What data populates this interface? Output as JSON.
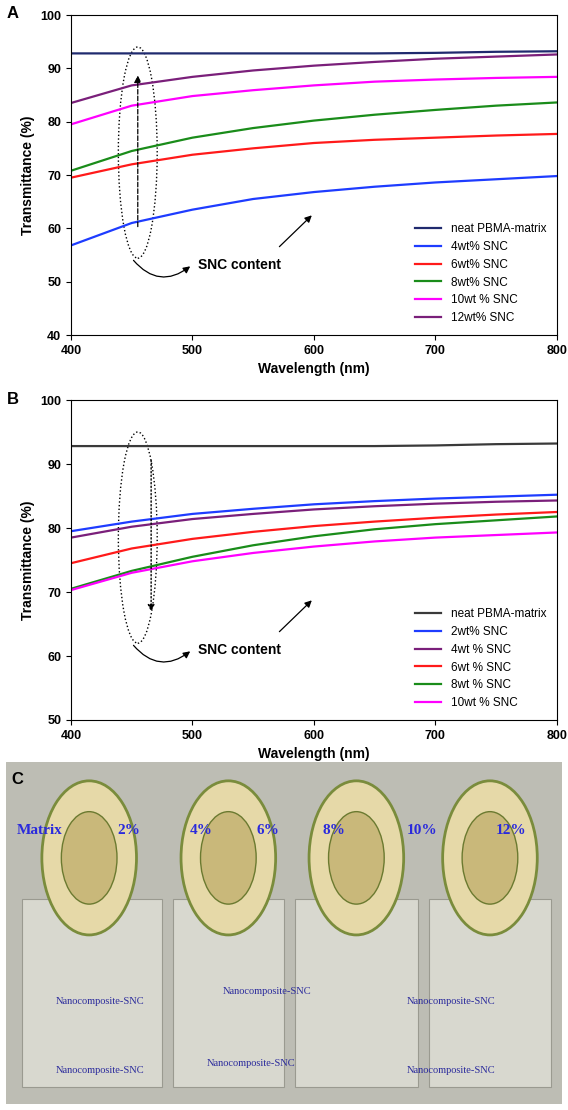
{
  "chart_data": [
    {
      "type": "line",
      "title": "A",
      "x_label": "Wavelength (nm)",
      "y_label": "Transmittance (%)",
      "annotation": "SNC content",
      "x": [
        400,
        450,
        500,
        550,
        600,
        650,
        700,
        750,
        800
      ],
      "series": [
        {
          "name": "neat PBMA-matrix",
          "color": "#1f2a6e",
          "values": [
            92.8,
            92.8,
            92.8,
            92.8,
            92.8,
            92.8,
            92.9,
            93.1,
            93.2
          ]
        },
        {
          "name": "4wt% SNC",
          "color": "#1e3cff",
          "values": [
            56.8,
            61.0,
            63.5,
            65.5,
            66.8,
            67.8,
            68.6,
            69.2,
            69.8
          ]
        },
        {
          "name": "6wt% SNC",
          "color": "#ff1a1a",
          "values": [
            69.5,
            72.0,
            73.8,
            75.0,
            76.0,
            76.6,
            77.0,
            77.4,
            77.7
          ]
        },
        {
          "name": "8wt% SNC",
          "color": "#1a8c1a",
          "values": [
            70.8,
            74.5,
            77.0,
            78.8,
            80.2,
            81.3,
            82.2,
            83.0,
            83.6
          ]
        },
        {
          "name": "10wt % SNC",
          "color": "#ff00ff",
          "values": [
            79.5,
            83.0,
            84.8,
            85.9,
            86.8,
            87.5,
            87.9,
            88.2,
            88.4
          ]
        },
        {
          "name": "12wt% SNC",
          "color": "#7a1f7a",
          "values": [
            83.5,
            86.8,
            88.4,
            89.6,
            90.5,
            91.2,
            91.8,
            92.2,
            92.6
          ]
        }
      ],
      "xlim": [
        400,
        800
      ],
      "xticks": [
        400,
        500,
        600,
        700,
        800
      ],
      "ylim": [
        40,
        100
      ],
      "yticks": [
        40,
        50,
        60,
        70,
        80,
        90,
        100
      ],
      "grid": false,
      "legend": "lower right"
    },
    {
      "type": "line",
      "title": "B",
      "x_label": "Wavelength (nm)",
      "y_label": "Transmittance (%)",
      "annotation": "SNC content",
      "x": [
        400,
        450,
        500,
        550,
        600,
        650,
        700,
        750,
        800
      ],
      "series": [
        {
          "name": "neat PBMA-matrix",
          "color": "#3a3a3a",
          "values": [
            92.8,
            92.8,
            92.8,
            92.8,
            92.8,
            92.8,
            92.9,
            93.1,
            93.2
          ]
        },
        {
          "name": "2wt% SNC",
          "color": "#1e3cff",
          "values": [
            79.5,
            81.0,
            82.2,
            83.0,
            83.7,
            84.2,
            84.6,
            84.9,
            85.2
          ]
        },
        {
          "name": "4wt % SNC",
          "color": "#7a1f7a",
          "values": [
            78.5,
            80.2,
            81.4,
            82.2,
            82.9,
            83.4,
            83.8,
            84.1,
            84.3
          ]
        },
        {
          "name": "6wt % SNC",
          "color": "#ff1a1a",
          "values": [
            74.5,
            76.8,
            78.3,
            79.4,
            80.3,
            81.0,
            81.6,
            82.1,
            82.5
          ]
        },
        {
          "name": "8wt % SNC",
          "color": "#1a8c1a",
          "values": [
            70.5,
            73.3,
            75.5,
            77.3,
            78.7,
            79.8,
            80.6,
            81.2,
            81.8
          ]
        },
        {
          "name": "10wt % SNC",
          "color": "#ff00ff",
          "values": [
            70.3,
            73.0,
            74.8,
            76.1,
            77.1,
            77.9,
            78.5,
            78.9,
            79.3
          ]
        }
      ],
      "xlim": [
        400,
        800
      ],
      "xticks": [
        400,
        500,
        600,
        700,
        800
      ],
      "ylim": [
        50,
        100
      ],
      "yticks": [
        50,
        60,
        70,
        80,
        90,
        100
      ],
      "grid": false,
      "legend": "lower right"
    }
  ],
  "photo": {
    "label": "C",
    "sample_labels": [
      "Matrix",
      "2%",
      "4%",
      "6%",
      "8%",
      "10%",
      "12%"
    ],
    "film_labels": [
      "Nanocomposite-SNC",
      "Nanocomposite-SNC",
      "Nanocomposite-SNC",
      "Nanocomposite-SNC",
      "Nanocomposite-SNC",
      "Nanocomposite-SNC"
    ]
  }
}
